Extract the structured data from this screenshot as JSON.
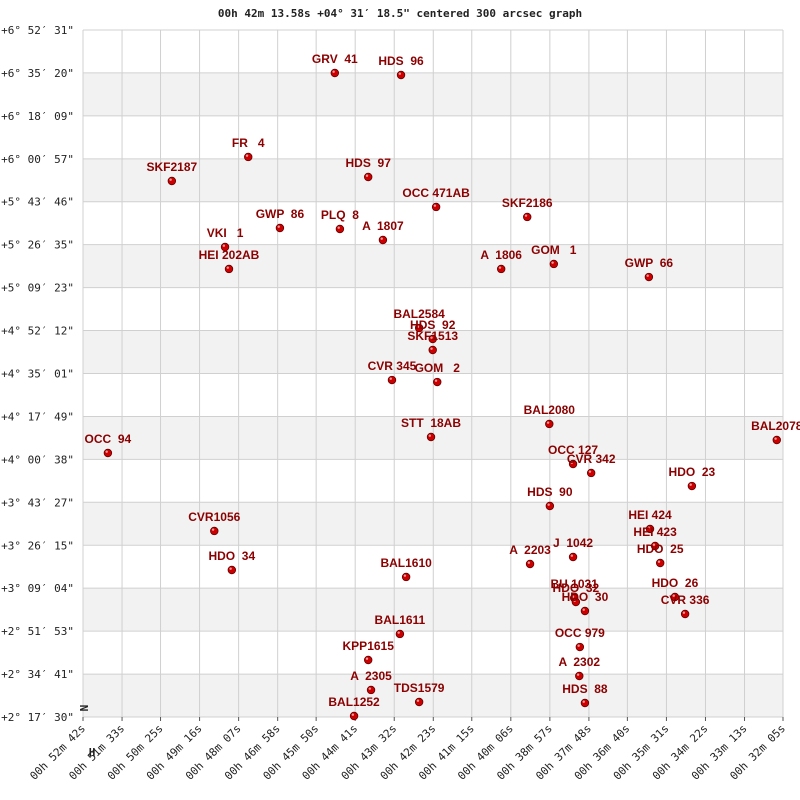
{
  "chart_data": {
    "type": "scatter",
    "title": "00h 42m 13.58s +04° 31′ 18.5\" centered 300 arcsec graph",
    "color": "#cc0000",
    "label_color": "#8b0000",
    "grid": true,
    "annotations": [
      "N",
      "H"
    ],
    "xlim": [
      3162,
      1925
    ],
    "ylim": [
      8250,
      24751
    ],
    "xticks": [
      {
        "value": 3162,
        "label": "00h 52m 42s"
      },
      {
        "value": 3093,
        "label": "00h 51m 33s"
      },
      {
        "value": 3025,
        "label": "00h 50m 25s"
      },
      {
        "value": 2956,
        "label": "00h 49m 16s"
      },
      {
        "value": 2887,
        "label": "00h 48m 07s"
      },
      {
        "value": 2818,
        "label": "00h 46m 58s"
      },
      {
        "value": 2750,
        "label": "00h 45m 50s"
      },
      {
        "value": 2681,
        "label": "00h 44m 41s"
      },
      {
        "value": 2612,
        "label": "00h 43m 32s"
      },
      {
        "value": 2543,
        "label": "00h 42m 23s"
      },
      {
        "value": 2475,
        "label": "00h 41m 15s"
      },
      {
        "value": 2406,
        "label": "00h 40m 06s"
      },
      {
        "value": 2337,
        "label": "00h 38m 57s"
      },
      {
        "value": 2268,
        "label": "00h 37m 48s"
      },
      {
        "value": 2200,
        "label": "00h 36m 40s"
      },
      {
        "value": 2131,
        "label": "00h 35m 31s"
      },
      {
        "value": 2062,
        "label": "00h 34m 22s"
      },
      {
        "value": 1993,
        "label": "00h 33m 13s"
      },
      {
        "value": 1925,
        "label": "00h 32m 05s"
      }
    ],
    "yticks": [
      {
        "value": 8250,
        "label": "+2° 17′ 30\""
      },
      {
        "value": 9281,
        "label": "+2° 34′ 41\""
      },
      {
        "value": 10313,
        "label": "+2° 51′ 53\""
      },
      {
        "value": 11344,
        "label": "+3° 09′ 04\""
      },
      {
        "value": 12375,
        "label": "+3° 26′ 15\""
      },
      {
        "value": 13407,
        "label": "+3° 43′ 27\""
      },
      {
        "value": 14438,
        "label": "+4° 00′ 38\""
      },
      {
        "value": 15469,
        "label": "+4° 17′ 49\""
      },
      {
        "value": 16501,
        "label": "+4° 35′ 01\""
      },
      {
        "value": 17532,
        "label": "+4° 52′ 12\""
      },
      {
        "value": 18563,
        "label": "+5° 09′ 23\""
      },
      {
        "value": 19595,
        "label": "+5° 26′ 35\""
      },
      {
        "value": 20626,
        "label": "+5° 43′ 46\""
      },
      {
        "value": 21657,
        "label": "+6° 00′ 57\""
      },
      {
        "value": 22689,
        "label": "+6° 18′ 09\""
      },
      {
        "value": 23720,
        "label": "+6° 35′ 20\""
      },
      {
        "value": 24751,
        "label": "+6° 52′ 31\""
      }
    ],
    "labels": [
      "GRV  41",
      "HDS  96",
      "FR   4",
      "SKF2187",
      "HDS  97",
      "OCC 471AB",
      "SKF2186",
      "GWP  86",
      "PLQ  8",
      "A  1807",
      "VKI   1",
      "HEI 202AB",
      "A  1806",
      "GOM   1",
      "GWP  66",
      "BAL2584",
      "HDS  92",
      "SKF1513",
      "CVR 345",
      "GOM   2",
      "BAL2080",
      "STT  18AB",
      "BAL2078",
      "OCC  94",
      "OCC 127",
      "CVR 342",
      "HDO  23",
      "HDS  90",
      "CVR1056",
      "HEI 424",
      "HEI 423",
      "J  1042",
      "A  2203",
      "HDO  25",
      "HDO  34",
      "BAL1610",
      "BU 1031",
      "HDO  32",
      "HDO  30",
      "HDO  26",
      "CVR 336",
      "BAL1611",
      "OCC 979",
      "KPP1615",
      "A  2302",
      "A  2305",
      "TDS1579",
      "HDS  88",
      "BAL1252"
    ],
    "x": [
      2717,
      2600,
      2870,
      3005,
      2658,
      2538,
      2377,
      2814,
      2708,
      2632,
      2911,
      2904,
      2423,
      2330,
      2162,
      2568,
      2544,
      2544,
      2616,
      2536,
      2338,
      2547,
      1936,
      3118,
      2296,
      2264,
      2086,
      2337,
      2930,
      2160,
      2151,
      2296,
      2372,
      2142,
      2899,
      2591,
      2294,
      2291,
      2275,
      2116,
      2098,
      2602,
      2284,
      2658,
      2285,
      2653,
      2568,
      2275,
      2683
    ],
    "values": [
      23718,
      23670,
      21701,
      21124,
      21220,
      20500,
      20260,
      19995,
      19971,
      19707,
      19539,
      19011,
      19011,
      19131,
      18818,
      17593,
      17329,
      17065,
      16344,
      16296,
      15288,
      14975,
      14903,
      14591,
      14327,
      14111,
      13798,
      13318,
      12718,
      12766,
      12357,
      12093,
      11925,
      11949,
      11781,
      11613,
      11108,
      11012,
      10796,
      11132,
      10724,
      10244,
      9931,
      9619,
      9235,
      8899,
      8610,
      8586,
      8274
    ]
  }
}
